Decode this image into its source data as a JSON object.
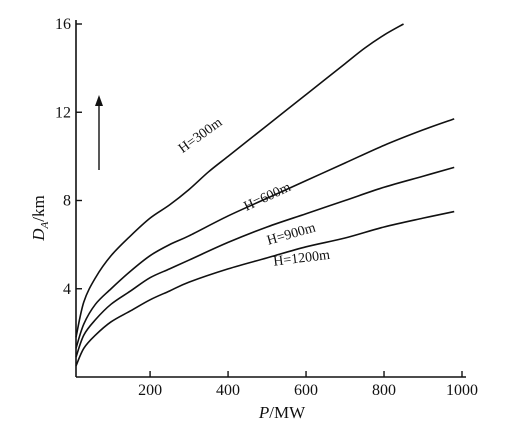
{
  "chart_data": {
    "type": "line",
    "xlabel": "P/MW",
    "ylabel": "D_A/km",
    "ylabel_main": "D",
    "ylabel_sub": "A",
    "ylabel_unit": "/km",
    "xlabel_main": "P",
    "xlabel_unit": "/MW",
    "xlim": [
      10,
      1000
    ],
    "ylim": [
      0,
      16
    ],
    "xticks": [
      200,
      400,
      600,
      800,
      1000
    ],
    "yticks": [
      4,
      8,
      12,
      16
    ],
    "grid": false,
    "legend": "inline",
    "series": [
      {
        "name": "H=300m",
        "x": [
          10,
          30,
          60,
          100,
          150,
          200,
          250,
          300,
          350,
          400,
          450,
          500,
          550,
          600,
          650,
          700,
          750,
          800,
          850
        ],
        "y": [
          1.8,
          3.4,
          4.5,
          5.5,
          6.4,
          7.2,
          7.8,
          8.5,
          9.3,
          10.0,
          10.7,
          11.4,
          12.1,
          12.8,
          13.5,
          14.2,
          14.9,
          15.5,
          16.0
        ]
      },
      {
        "name": "H=600m",
        "x": [
          10,
          30,
          60,
          100,
          150,
          200,
          250,
          300,
          400,
          500,
          600,
          700,
          800,
          900,
          980
        ],
        "y": [
          1.3,
          2.4,
          3.3,
          4.0,
          4.8,
          5.5,
          6.0,
          6.4,
          7.3,
          8.1,
          8.9,
          9.7,
          10.5,
          11.2,
          11.7
        ]
      },
      {
        "name": "H=900m",
        "x": [
          10,
          30,
          60,
          100,
          150,
          200,
          250,
          300,
          400,
          500,
          600,
          700,
          800,
          900,
          980
        ],
        "y": [
          0.9,
          1.9,
          2.6,
          3.3,
          3.9,
          4.5,
          4.9,
          5.3,
          6.1,
          6.8,
          7.4,
          8.0,
          8.6,
          9.1,
          9.5
        ]
      },
      {
        "name": "H=1200m",
        "x": [
          10,
          30,
          60,
          100,
          150,
          200,
          250,
          300,
          400,
          500,
          600,
          700,
          800,
          900,
          980
        ],
        "y": [
          0.5,
          1.3,
          1.9,
          2.5,
          3.0,
          3.5,
          3.9,
          4.3,
          4.9,
          5.4,
          5.9,
          6.3,
          6.8,
          7.2,
          7.5
        ]
      }
    ],
    "label_positions": [
      {
        "series": "H=300m",
        "x": 335,
        "y": 10.8,
        "angle": -36
      },
      {
        "series": "H=600m",
        "x": 505,
        "y": 8.0,
        "angle": -25
      },
      {
        "series": "H=900m",
        "x": 565,
        "y": 6.3,
        "angle": -16
      },
      {
        "series": "H=1200m",
        "x": 590,
        "y": 5.2,
        "angle": -7
      }
    ]
  }
}
